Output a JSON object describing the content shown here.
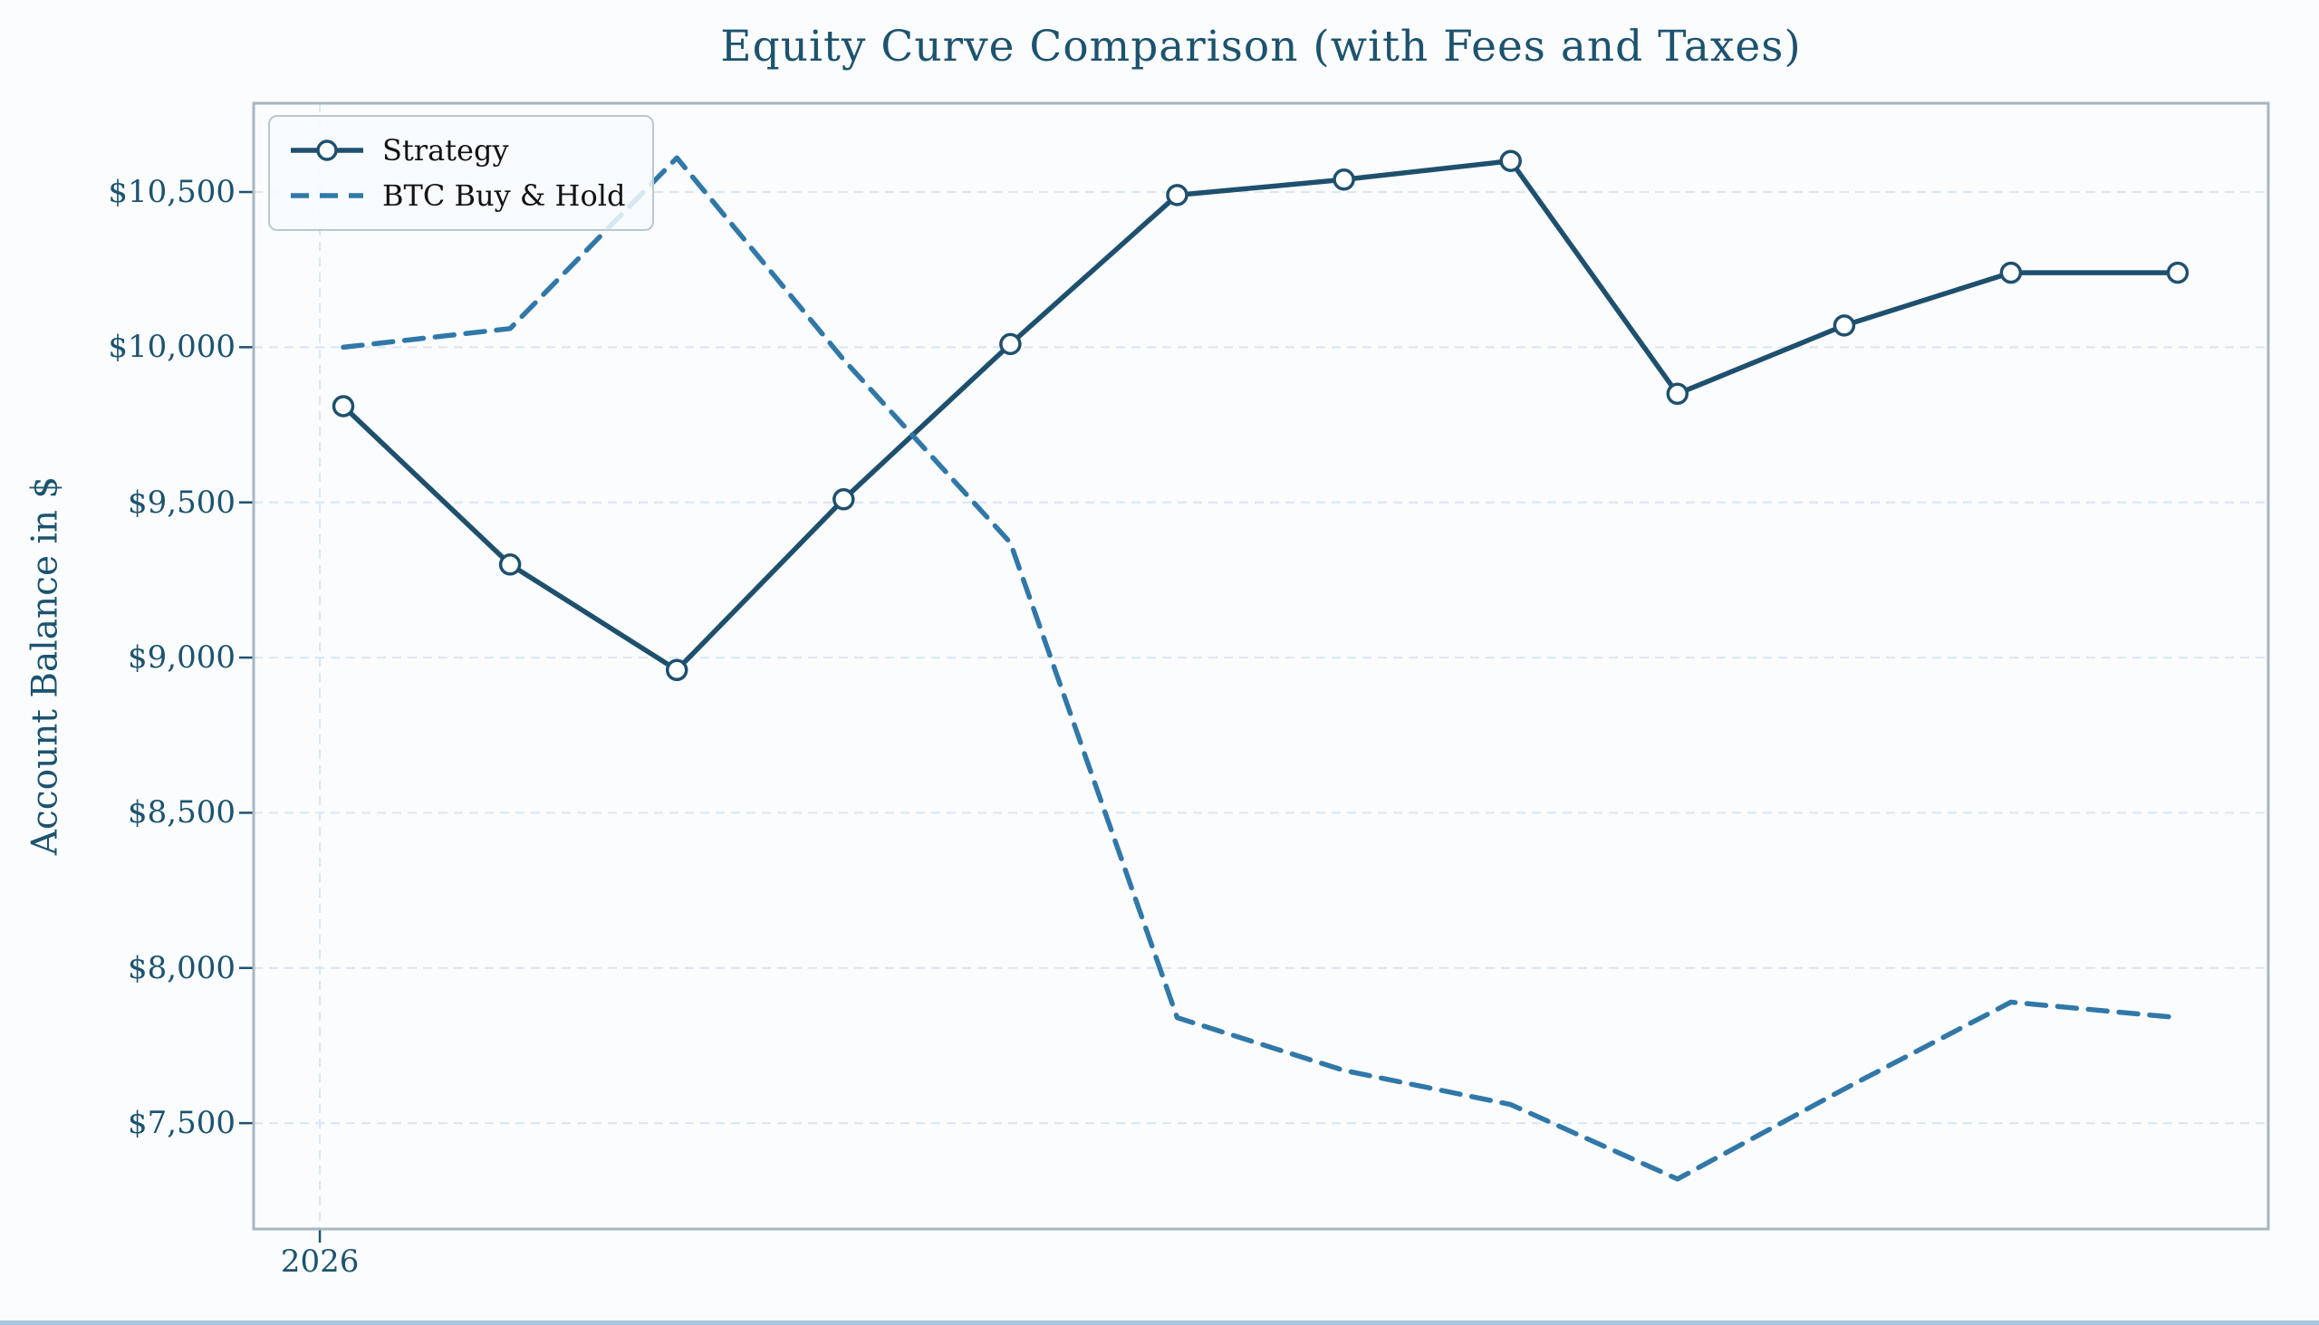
{
  "figure": {
    "background": "#fbfcfe"
  },
  "chart_data": {
    "type": "line",
    "title": "Equity Curve Comparison (with Fees and Taxes)",
    "xlabel": "",
    "ylabel": "Account Balance in $",
    "grid": true,
    "legend_position": "upper left",
    "x": [
      0,
      1,
      2,
      3,
      4,
      5,
      6,
      7,
      8,
      9,
      10,
      11
    ],
    "x_axis": {
      "xlim": [
        -0.538,
        11.543
      ],
      "ticks": [
        {
          "label": "2026",
          "x": -0.141
        }
      ]
    },
    "y_axis": {
      "ylim": [
        7159,
        10786
      ],
      "ticks": [
        7500,
        8000,
        8500,
        9000,
        9500,
        10000,
        10500
      ],
      "tick_labels": [
        "$7,500",
        "$8,000",
        "$8,500",
        "$9,000",
        "$9,500",
        "$10,000",
        "$10,500"
      ]
    },
    "series": [
      {
        "name": "Strategy",
        "style": "solid",
        "marker": "circle",
        "color": "#1e506e",
        "values": [
          9810,
          9300,
          8960,
          9510,
          10010,
          10490,
          10540,
          10600,
          9850,
          10070,
          10240,
          10240
        ]
      },
      {
        "name": "BTC Buy & Hold",
        "style": "dashed",
        "marker": "none",
        "color": "#3078a8",
        "values": [
          10000,
          10060,
          10610,
          9960,
          9370,
          7840,
          7670,
          7560,
          7320,
          7610,
          7890,
          7840
        ]
      }
    ],
    "colors": {
      "grid": "#dce8f3",
      "spine": "#a8b6c0",
      "tick_text": "#1c536f",
      "title_text": "#1c536f",
      "legend_border": "#bac7d1",
      "legend_background": "#f7fafd",
      "marker_face": "#ffffff"
    }
  }
}
